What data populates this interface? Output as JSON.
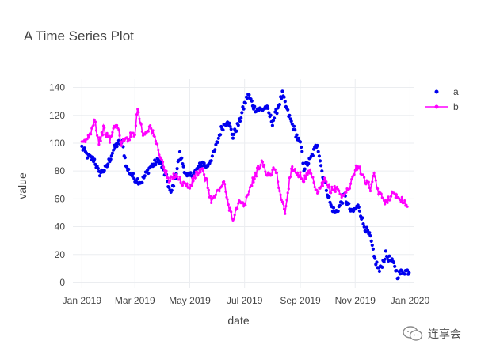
{
  "chart_data": {
    "type": "scatter",
    "title": "A Time Series Plot",
    "xlabel": "date",
    "ylabel": "value",
    "x_range": [
      "2018-12-22",
      "2020-01-05"
    ],
    "x_ticks": [
      {
        "date": "2019-01-01",
        "label": "Jan 2019"
      },
      {
        "date": "2019-03-01",
        "label": "Mar 2019"
      },
      {
        "date": "2019-05-01",
        "label": "May 2019"
      },
      {
        "date": "2019-07-01",
        "label": "Jul 2019"
      },
      {
        "date": "2019-09-01",
        "label": "Sep 2019"
      },
      {
        "date": "2019-11-01",
        "label": "Nov 2019"
      },
      {
        "date": "2020-01-01",
        "label": "Jan 2020"
      }
    ],
    "ylim": [
      -4,
      146
    ],
    "y_ticks": [
      0,
      20,
      40,
      60,
      80,
      100,
      120,
      140
    ],
    "grid": true,
    "legend_position": "top-right",
    "series": [
      {
        "name": "a",
        "mode": "markers",
        "color": "#0000ee",
        "start_date": "2019-01-01",
        "end_date": "2019-12-31",
        "anchors": [
          [
            "2019-01-01",
            97
          ],
          [
            "2019-01-08",
            90
          ],
          [
            "2019-01-15",
            88
          ],
          [
            "2019-01-20",
            78
          ],
          [
            "2019-01-28",
            82
          ],
          [
            "2019-02-05",
            95
          ],
          [
            "2019-02-10",
            100
          ],
          [
            "2019-02-15",
            100
          ],
          [
            "2019-02-20",
            82
          ],
          [
            "2019-02-28",
            75
          ],
          [
            "2019-03-08",
            72
          ],
          [
            "2019-03-18",
            83
          ],
          [
            "2019-03-28",
            88
          ],
          [
            "2019-04-05",
            75
          ],
          [
            "2019-04-10",
            63
          ],
          [
            "2019-04-17",
            82
          ],
          [
            "2019-04-20",
            92
          ],
          [
            "2019-04-28",
            75
          ],
          [
            "2019-05-08",
            80
          ],
          [
            "2019-05-15",
            86
          ],
          [
            "2019-05-20",
            83
          ],
          [
            "2019-05-28",
            93
          ],
          [
            "2019-06-05",
            110
          ],
          [
            "2019-06-12",
            117
          ],
          [
            "2019-06-18",
            105
          ],
          [
            "2019-06-25",
            115
          ],
          [
            "2019-07-01",
            128
          ],
          [
            "2019-07-05",
            135
          ],
          [
            "2019-07-12",
            125
          ],
          [
            "2019-07-20",
            124
          ],
          [
            "2019-07-25",
            126
          ],
          [
            "2019-08-01",
            115
          ],
          [
            "2019-08-05",
            122
          ],
          [
            "2019-08-12",
            135
          ],
          [
            "2019-08-18",
            122
          ],
          [
            "2019-08-25",
            110
          ],
          [
            "2019-09-02",
            97
          ],
          [
            "2019-09-05",
            82
          ],
          [
            "2019-09-12",
            88
          ],
          [
            "2019-09-20",
            100
          ],
          [
            "2019-09-25",
            80
          ],
          [
            "2019-10-01",
            65
          ],
          [
            "2019-10-05",
            55
          ],
          [
            "2019-10-10",
            50
          ],
          [
            "2019-10-15",
            55
          ],
          [
            "2019-10-20",
            62
          ],
          [
            "2019-10-28",
            50
          ],
          [
            "2019-11-05",
            55
          ],
          [
            "2019-11-10",
            42
          ],
          [
            "2019-11-18",
            32
          ],
          [
            "2019-11-22",
            18
          ],
          [
            "2019-11-28",
            8
          ],
          [
            "2019-12-05",
            20
          ],
          [
            "2019-12-10",
            16
          ],
          [
            "2019-12-15",
            12
          ],
          [
            "2019-12-18",
            5
          ],
          [
            "2019-12-24",
            8
          ]
        ]
      },
      {
        "name": "b",
        "mode": "lines+markers",
        "color": "#ff00ff",
        "start_date": "2019-01-01",
        "end_date": "2019-12-29",
        "anchors": [
          [
            "2019-01-01",
            99
          ],
          [
            "2019-01-07",
            103
          ],
          [
            "2019-01-12",
            110
          ],
          [
            "2019-01-15",
            118
          ],
          [
            "2019-01-20",
            100
          ],
          [
            "2019-01-25",
            110
          ],
          [
            "2019-02-01",
            102
          ],
          [
            "2019-02-08",
            115
          ],
          [
            "2019-02-14",
            100
          ],
          [
            "2019-02-22",
            104
          ],
          [
            "2019-03-01",
            108
          ],
          [
            "2019-03-04",
            125
          ],
          [
            "2019-03-10",
            106
          ],
          [
            "2019-03-18",
            112
          ],
          [
            "2019-03-25",
            100
          ],
          [
            "2019-04-01",
            85
          ],
          [
            "2019-04-08",
            72
          ],
          [
            "2019-04-15",
            78
          ],
          [
            "2019-04-22",
            72
          ],
          [
            "2019-05-01",
            68
          ],
          [
            "2019-05-08",
            78
          ],
          [
            "2019-05-15",
            80
          ],
          [
            "2019-05-20",
            72
          ],
          [
            "2019-05-25",
            58
          ],
          [
            "2019-06-01",
            65
          ],
          [
            "2019-06-08",
            72
          ],
          [
            "2019-06-12",
            58
          ],
          [
            "2019-06-18",
            46
          ],
          [
            "2019-06-25",
            57
          ],
          [
            "2019-07-01",
            55
          ],
          [
            "2019-07-08",
            70
          ],
          [
            "2019-07-15",
            80
          ],
          [
            "2019-07-20",
            87
          ],
          [
            "2019-07-28",
            75
          ],
          [
            "2019-08-04",
            83
          ],
          [
            "2019-08-10",
            63
          ],
          [
            "2019-08-15",
            50
          ],
          [
            "2019-08-22",
            83
          ],
          [
            "2019-08-28",
            79
          ],
          [
            "2019-09-05",
            74
          ],
          [
            "2019-09-12",
            79
          ],
          [
            "2019-09-20",
            63
          ],
          [
            "2019-09-28",
            73
          ],
          [
            "2019-10-05",
            66
          ],
          [
            "2019-10-12",
            68
          ],
          [
            "2019-10-18",
            61
          ],
          [
            "2019-10-25",
            68
          ],
          [
            "2019-11-01",
            80
          ],
          [
            "2019-11-04",
            85
          ],
          [
            "2019-11-10",
            75
          ],
          [
            "2019-11-18",
            68
          ],
          [
            "2019-11-22",
            76
          ],
          [
            "2019-11-28",
            63
          ],
          [
            "2019-12-05",
            58
          ],
          [
            "2019-12-12",
            63
          ],
          [
            "2019-12-20",
            62
          ],
          [
            "2019-12-29",
            55
          ]
        ]
      }
    ]
  },
  "watermark": {
    "text": "连享会",
    "icon": "wechat-icon"
  }
}
